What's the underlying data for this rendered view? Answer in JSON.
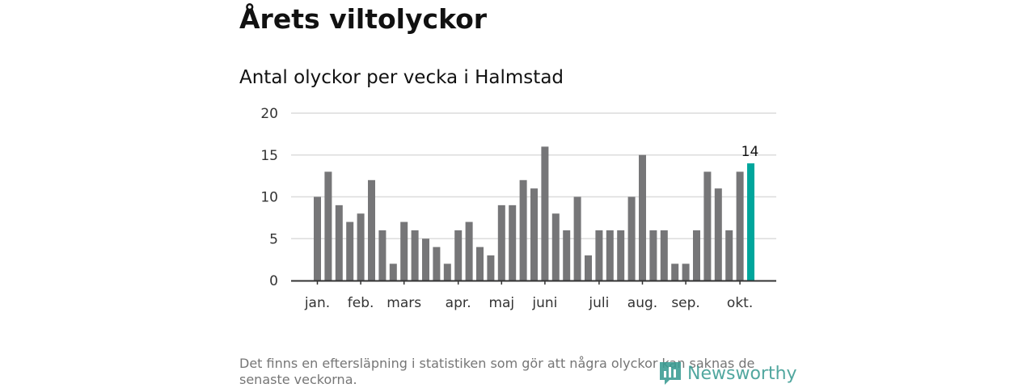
{
  "header": {
    "title": "Årets viltolyckor",
    "subtitle": "Antal olyckor per vecka i Halmstad"
  },
  "chart_data": {
    "type": "bar",
    "title": "Antal olyckor per vecka i Halmstad",
    "xlabel": "",
    "ylabel": "",
    "ylim": [
      0,
      20
    ],
    "yticks": [
      0,
      5,
      10,
      15,
      20
    ],
    "grid": true,
    "month_labels": [
      {
        "label": "jan.",
        "week": 1
      },
      {
        "label": "feb.",
        "week": 5
      },
      {
        "label": "mars",
        "week": 9
      },
      {
        "label": "apr.",
        "week": 14
      },
      {
        "label": "maj",
        "week": 18
      },
      {
        "label": "juni",
        "week": 22
      },
      {
        "label": "juli",
        "week": 27
      },
      {
        "label": "aug.",
        "week": 31
      },
      {
        "label": "sep.",
        "week": 35
      },
      {
        "label": "okt.",
        "week": 40
      }
    ],
    "values": [
      10,
      13,
      9,
      7,
      8,
      12,
      6,
      2,
      7,
      6,
      5,
      4,
      2,
      6,
      7,
      4,
      3,
      9,
      9,
      12,
      11,
      16,
      8,
      6,
      10,
      3,
      6,
      6,
      6,
      10,
      15,
      6,
      6,
      2,
      2,
      6,
      13,
      11,
      6,
      13,
      14
    ],
    "highlight_index": 40,
    "highlight_label": "14",
    "colors": {
      "bar": "#767678",
      "highlight": "#00a69c",
      "grid": "#dcdcdc",
      "axis": "#333333"
    }
  },
  "footer": {
    "note": "Det finns en eftersläpning i statistiken som gör att några olyckor kan saknas de senaste veckorna.",
    "brand": "Newsworthy",
    "brand_icon": "newsworthy-logo-icon"
  }
}
